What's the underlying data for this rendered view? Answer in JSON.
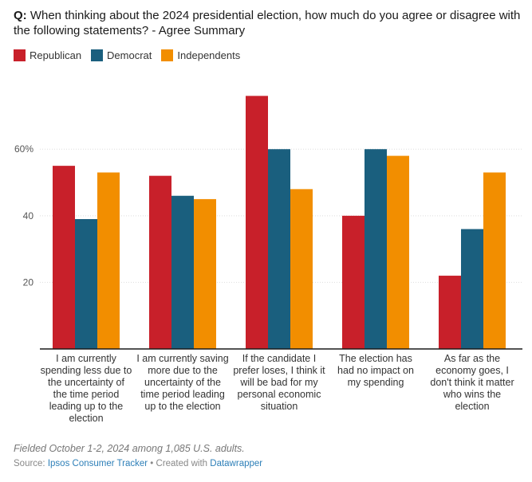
{
  "header": {
    "prefix": "Q:",
    "title": "When thinking about the 2024 presidential election, how much do you agree or disagree with the following statements? - Agree Summary"
  },
  "colors": {
    "republican": "#c8202a",
    "democrat": "#1a5f7e",
    "independents": "#f28e00",
    "axis": "#1a1a1a",
    "grid": "#dddddd"
  },
  "chart_data": {
    "type": "bar",
    "categories": [
      "I am currently spending less due to the uncertainty of the time period leading up to the election",
      "I am currently saving more due to the uncertainty of the time period leading up to the election",
      "If the candidate I prefer loses, I think it will be bad for my personal economic situation",
      "The election has had no impact on my spending",
      "As far as the economy goes, I don't think it matter who wins the election"
    ],
    "series": [
      {
        "name": "Republican",
        "values": [
          55,
          52,
          76,
          40,
          22
        ]
      },
      {
        "name": "Democrat",
        "values": [
          39,
          46,
          60,
          60,
          36
        ]
      },
      {
        "name": "Independents",
        "values": [
          53,
          45,
          48,
          58,
          53
        ]
      }
    ],
    "yticks": [
      "20",
      "40",
      "60%"
    ],
    "ylim": [
      0,
      78
    ],
    "grid": true,
    "legend": "top-left"
  },
  "footer": {
    "notes": "Fielded October 1-2, 2024 among 1,085 U.S. adults.",
    "source_prefix": "Source: ",
    "source_link": "Ipsos Consumer Tracker",
    "separator": " • Created with ",
    "tool_link": "Datawrapper"
  }
}
